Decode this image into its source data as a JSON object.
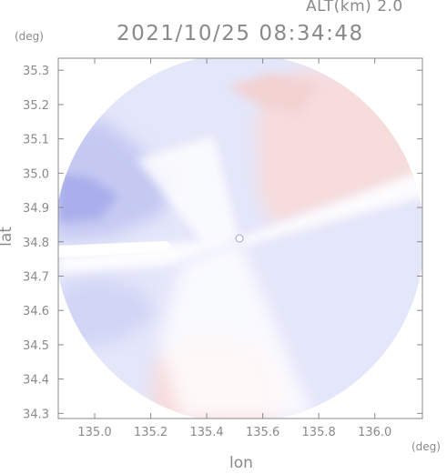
{
  "header": {
    "altitude": "ALT(km) 2.0",
    "timestamp": "2021/10/25 08:34:48"
  },
  "chart_data": {
    "type": "heatmap",
    "title": "2021/10/25 08:34:48",
    "subtitle": "ALT(km) 2.0",
    "xlabel": "lon",
    "ylabel": "lat",
    "x_unit": "(deg)",
    "y_unit": "(deg)",
    "xlim": [
      134.87,
      136.17
    ],
    "ylim": [
      34.285,
      35.335
    ],
    "x_ticks": [
      135.0,
      135.2,
      135.4,
      135.6,
      135.8,
      136.0
    ],
    "x_tick_labels": [
      "135.0",
      "135.2",
      "135.4",
      "135.6",
      "135.8",
      "136.0"
    ],
    "y_ticks": [
      34.3,
      34.4,
      34.5,
      34.6,
      34.7,
      34.8,
      34.9,
      35.0,
      35.1,
      35.2,
      35.3
    ],
    "y_tick_labels": [
      "34.3",
      "34.4",
      "34.5",
      "34.6",
      "34.7",
      "34.8",
      "34.9",
      "35.0",
      "35.1",
      "35.2",
      "35.3"
    ],
    "grid": false,
    "radar_center": {
      "lon": 135.52,
      "lat": 34.825
    },
    "colors": {
      "toward": "#8f95e6",
      "neutral": "#ffffff",
      "away": "#f0a8a8",
      "axis": "#8a8a8a"
    }
  }
}
